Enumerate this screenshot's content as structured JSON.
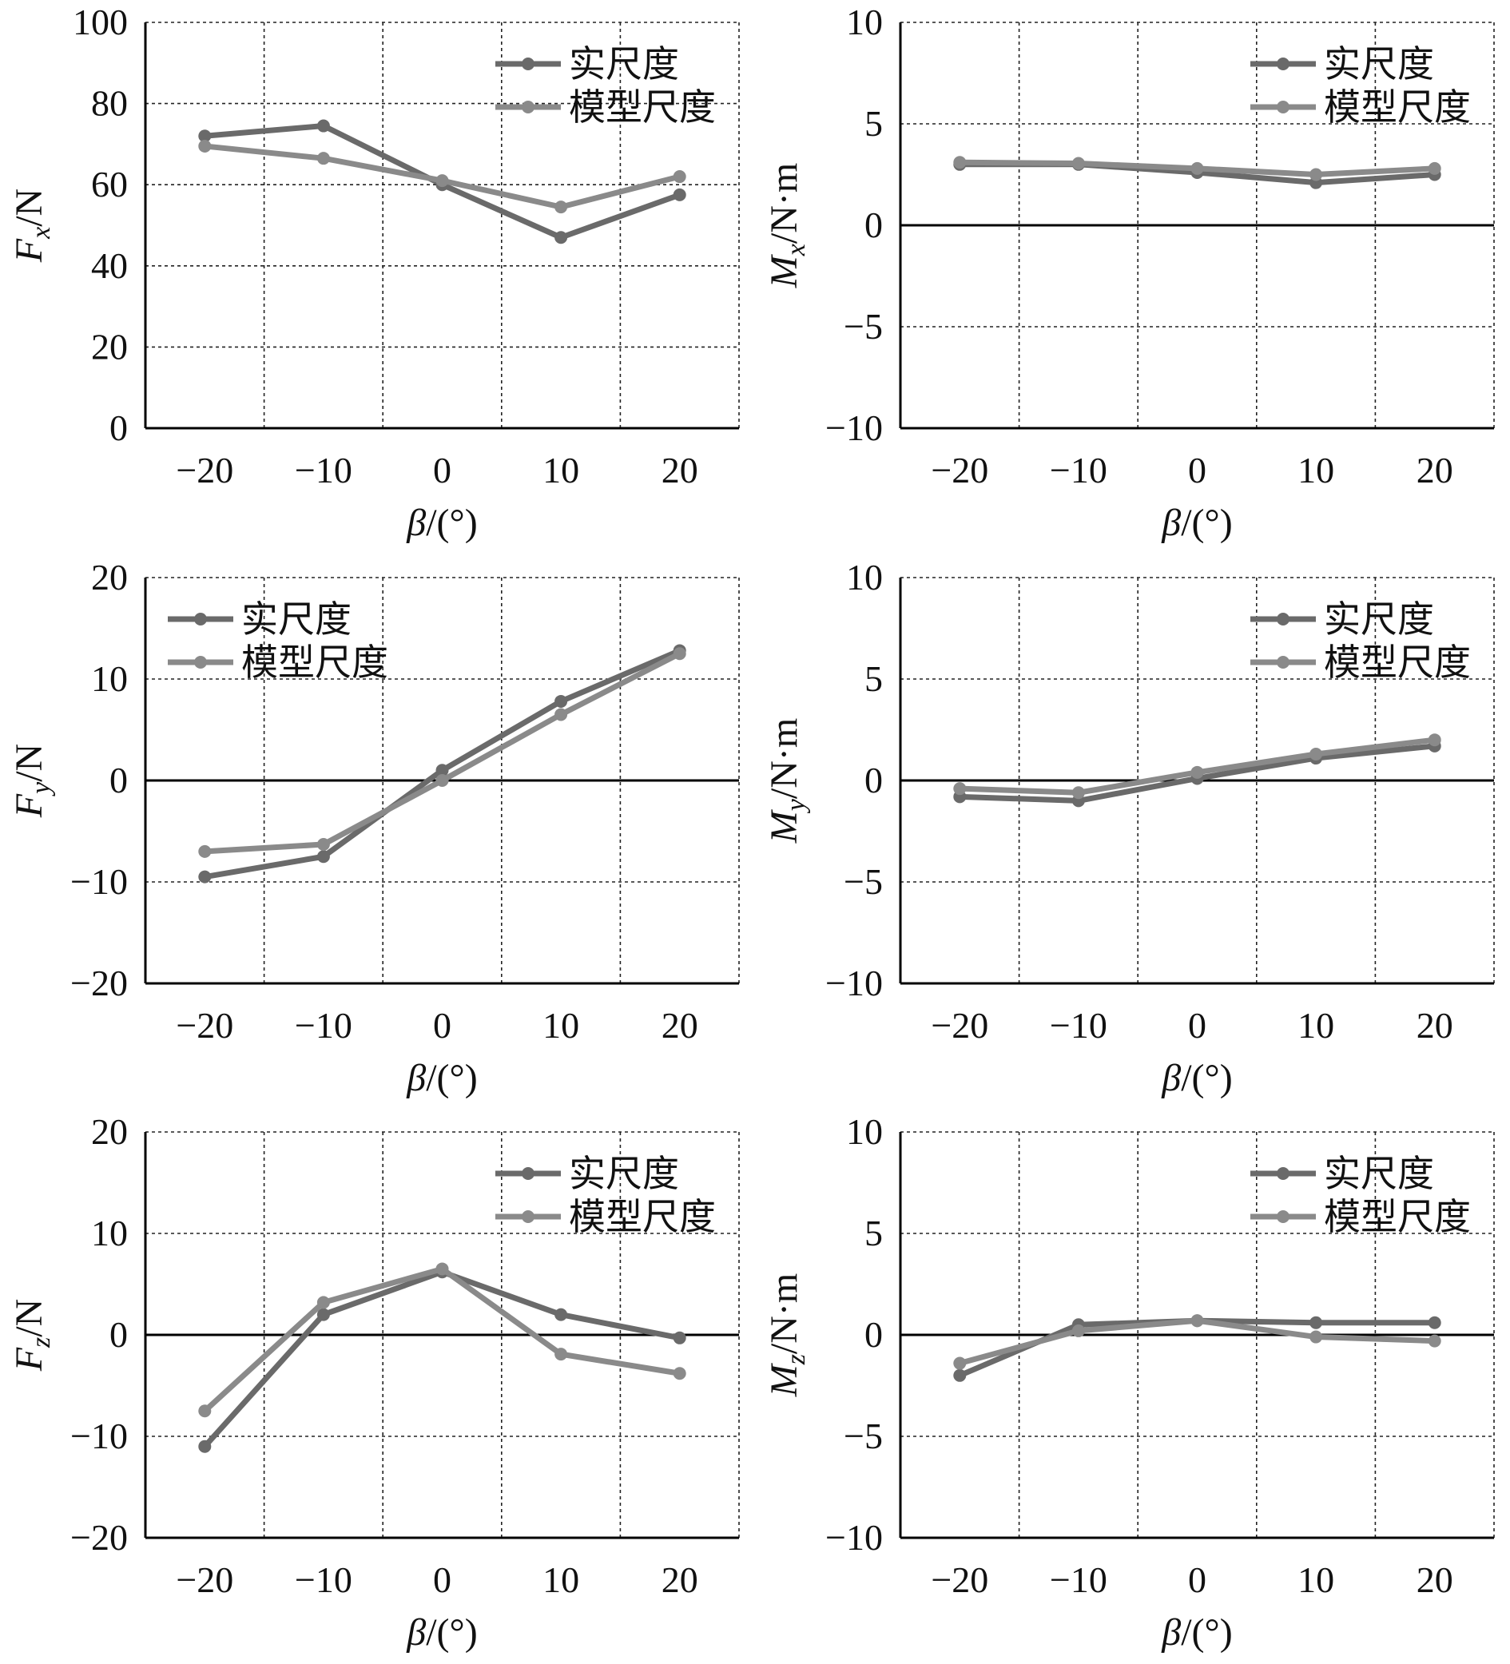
{
  "colors": {
    "real_scale": "#6a6a6a",
    "model_scale": "#8a8a8a",
    "axis": "#000000",
    "grid": "#222222"
  },
  "chart_data": [
    {
      "id": "fx",
      "type": "line",
      "ylabel_main": "F",
      "ylabel_sub": "x",
      "ylabel_unit": "/N",
      "xlabel_main": "β",
      "xlabel_unit": "/(°)",
      "xlim": [
        -25,
        25
      ],
      "ylim": [
        0,
        100
      ],
      "xticks": [
        -20,
        -10,
        0,
        10,
        20
      ],
      "xtick_labels": [
        "−20",
        "−10",
        "0",
        "10",
        "20"
      ],
      "yticks": [
        0,
        20,
        40,
        60,
        80,
        100
      ],
      "ytick_labels": [
        "0",
        "20",
        "40",
        "60",
        "80",
        "100"
      ],
      "legend_position": "top-right",
      "x": [
        -20,
        -10,
        0,
        10,
        20
      ],
      "series": [
        {
          "name": "实尺度",
          "values": [
            72,
            74.5,
            60,
            47,
            57.5
          ]
        },
        {
          "name": "模型尺度",
          "values": [
            69.5,
            66.5,
            61,
            54.5,
            62
          ]
        }
      ]
    },
    {
      "id": "mx",
      "type": "line",
      "ylabel_main": "M",
      "ylabel_sub": "x",
      "ylabel_unit": "/N·m",
      "xlabel_main": "β",
      "xlabel_unit": "/(°)",
      "xlim": [
        -25,
        25
      ],
      "ylim": [
        -10,
        10
      ],
      "xticks": [
        -20,
        -10,
        0,
        10,
        20
      ],
      "xtick_labels": [
        "−20",
        "−10",
        "0",
        "10",
        "20"
      ],
      "yticks": [
        -10,
        -5,
        0,
        5,
        10
      ],
      "ytick_labels": [
        "−10",
        "−5",
        "0",
        "5",
        "10"
      ],
      "legend_position": "top-right",
      "x": [
        -20,
        -10,
        0,
        10,
        20
      ],
      "series": [
        {
          "name": "实尺度",
          "values": [
            3.0,
            3.0,
            2.6,
            2.1,
            2.5
          ]
        },
        {
          "name": "模型尺度",
          "values": [
            3.1,
            3.05,
            2.8,
            2.5,
            2.8
          ]
        }
      ]
    },
    {
      "id": "fy",
      "type": "line",
      "ylabel_main": "F",
      "ylabel_sub": "y",
      "ylabel_unit": "/N",
      "xlabel_main": "β",
      "xlabel_unit": "/(°)",
      "xlim": [
        -25,
        25
      ],
      "ylim": [
        -20,
        20
      ],
      "xticks": [
        -20,
        -10,
        0,
        10,
        20
      ],
      "xtick_labels": [
        "−20",
        "−10",
        "0",
        "10",
        "20"
      ],
      "yticks": [
        -20,
        -10,
        0,
        10,
        20
      ],
      "ytick_labels": [
        "−20",
        "−10",
        "0",
        "10",
        "20"
      ],
      "legend_position": "top-left",
      "x": [
        -20,
        -10,
        0,
        10,
        20
      ],
      "series": [
        {
          "name": "实尺度",
          "values": [
            -9.5,
            -7.5,
            1.0,
            7.8,
            12.8
          ]
        },
        {
          "name": "模型尺度",
          "values": [
            -7.0,
            -6.3,
            0.0,
            6.5,
            12.5
          ]
        }
      ]
    },
    {
      "id": "my",
      "type": "line",
      "ylabel_main": "M",
      "ylabel_sub": "y",
      "ylabel_unit": "/N·m",
      "xlabel_main": "β",
      "xlabel_unit": "/(°)",
      "xlim": [
        -25,
        25
      ],
      "ylim": [
        -10,
        10
      ],
      "xticks": [
        -20,
        -10,
        0,
        10,
        20
      ],
      "xtick_labels": [
        "−20",
        "−10",
        "0",
        "10",
        "20"
      ],
      "yticks": [
        -10,
        -5,
        0,
        5,
        10
      ],
      "ytick_labels": [
        "−10",
        "−5",
        "0",
        "5",
        "10"
      ],
      "legend_position": "top-right",
      "x": [
        -20,
        -10,
        0,
        10,
        20
      ],
      "series": [
        {
          "name": "实尺度",
          "values": [
            -0.8,
            -1.0,
            0.1,
            1.1,
            1.7
          ]
        },
        {
          "name": "模型尺度",
          "values": [
            -0.4,
            -0.6,
            0.4,
            1.3,
            2.0
          ]
        }
      ]
    },
    {
      "id": "fz",
      "type": "line",
      "ylabel_main": "F",
      "ylabel_sub": "z",
      "ylabel_unit": "/N",
      "xlabel_main": "β",
      "xlabel_unit": "/(°)",
      "xlim": [
        -25,
        25
      ],
      "ylim": [
        -20,
        20
      ],
      "xticks": [
        -20,
        -10,
        0,
        10,
        20
      ],
      "xtick_labels": [
        "−20",
        "−10",
        "0",
        "10",
        "20"
      ],
      "yticks": [
        -20,
        -10,
        0,
        10,
        20
      ],
      "ytick_labels": [
        "−20",
        "−10",
        "0",
        "10",
        "20"
      ],
      "legend_position": "top-right",
      "x": [
        -20,
        -10,
        0,
        10,
        20
      ],
      "series": [
        {
          "name": "实尺度",
          "values": [
            -11.0,
            2.0,
            6.2,
            2.0,
            -0.3
          ]
        },
        {
          "name": "模型尺度",
          "values": [
            -7.5,
            3.2,
            6.5,
            -1.9,
            -3.8
          ]
        }
      ]
    },
    {
      "id": "mz",
      "type": "line",
      "ylabel_main": "M",
      "ylabel_sub": "z",
      "ylabel_unit": "/N·m",
      "xlabel_main": "β",
      "xlabel_unit": "/(°)",
      "xlim": [
        -25,
        25
      ],
      "ylim": [
        -10,
        10
      ],
      "xticks": [
        -20,
        -10,
        0,
        10,
        20
      ],
      "xtick_labels": [
        "−20",
        "−10",
        "0",
        "10",
        "20"
      ],
      "yticks": [
        -10,
        -5,
        0,
        5,
        10
      ],
      "ytick_labels": [
        "−10",
        "−5",
        "0",
        "5",
        "10"
      ],
      "legend_position": "top-right",
      "x": [
        -20,
        -10,
        0,
        10,
        20
      ],
      "series": [
        {
          "name": "实尺度",
          "values": [
            -2.0,
            0.5,
            0.7,
            0.6,
            0.6
          ]
        },
        {
          "name": "模型尺度",
          "values": [
            -1.4,
            0.2,
            0.7,
            -0.1,
            -0.3
          ]
        }
      ]
    }
  ]
}
